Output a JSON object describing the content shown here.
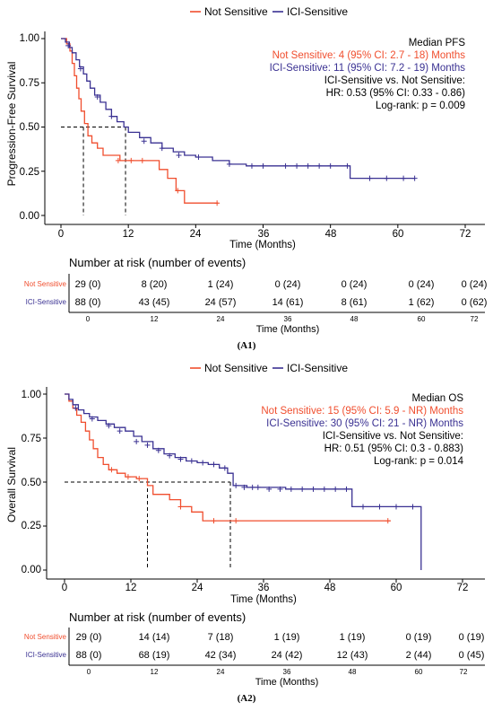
{
  "colors": {
    "not_sensitive": "#F04E2E",
    "ici_sensitive": "#3A3192",
    "axis": "#000000",
    "median_line": "#000000"
  },
  "chart_data": [
    {
      "type": "line",
      "panel_label": "(A1)",
      "legend": [
        "Not Sensitive",
        "ICI-Sensitive"
      ],
      "legend_position": "top",
      "xlabel": "Time (Months)",
      "ylabel": "Progression-Free Survival",
      "xlim": [
        0,
        72
      ],
      "ylim": [
        0,
        1
      ],
      "xticks": [
        "0",
        "12",
        "24",
        "36",
        "48",
        "60",
        "72"
      ],
      "yticks": [
        "0.00",
        "0.25",
        "0.50",
        "0.75",
        "1.00"
      ],
      "grid": false,
      "annotations": {
        "title": "Median PFS",
        "line_not_sensitive": "Not Sensitive: 4 (95% CI: 2.7 - 18) Months",
        "line_ici_sensitive": "ICI-Sensitive: 11 (95% CI: 7.2 - 19) Months",
        "comparison": "ICI-Sensitive vs. Not Sensitive:",
        "hr": "HR: 0.53 (95% CI: 0.33 - 0.86)",
        "logrank": "Log-rank: p = 0.009"
      },
      "medians": [
        4,
        11.5
      ],
      "series": [
        {
          "name": "Not Sensitive",
          "step_x": [
            0,
            1,
            1.6,
            2,
            2.4,
            2.8,
            3.2,
            3.6,
            4.2,
            4.8,
            5.5,
            6.5,
            7.5,
            10.5,
            17.5,
            19,
            20.5,
            22,
            28
          ],
          "step_y": [
            1,
            0.97,
            0.93,
            0.86,
            0.79,
            0.72,
            0.66,
            0.59,
            0.52,
            0.45,
            0.41,
            0.38,
            0.34,
            0.31,
            0.26,
            0.21,
            0.14,
            0.07,
            0.07
          ],
          "censor_x": [
            10.2,
            12.5,
            14.5,
            20.8,
            27.8
          ],
          "censor_y": [
            0.31,
            0.31,
            0.31,
            0.14,
            0.07
          ]
        },
        {
          "name": "ICI-Sensitive",
          "step_x": [
            0,
            0.8,
            1.5,
            2,
            2.7,
            3.3,
            4,
            4.6,
            5.2,
            6,
            7,
            8,
            9,
            10,
            11.2,
            12,
            14,
            16,
            18,
            20,
            22,
            24,
            27,
            30,
            33,
            37,
            42,
            48,
            51.5,
            52.5,
            63
          ],
          "step_y": [
            1,
            0.98,
            0.95,
            0.92,
            0.88,
            0.84,
            0.8,
            0.76,
            0.72,
            0.68,
            0.64,
            0.6,
            0.56,
            0.53,
            0.5,
            0.47,
            0.44,
            0.41,
            0.38,
            0.36,
            0.34,
            0.33,
            0.31,
            0.29,
            0.28,
            0.28,
            0.28,
            0.28,
            0.21,
            0.21,
            0.21
          ],
          "censor_x": [
            1.3,
            3.5,
            6.5,
            9,
            14.8,
            18,
            21,
            24.5,
            30,
            34,
            36,
            40,
            42,
            44,
            46,
            48,
            51,
            55,
            58,
            61,
            63
          ],
          "censor_y": [
            0.96,
            0.83,
            0.67,
            0.56,
            0.42,
            0.38,
            0.34,
            0.33,
            0.29,
            0.28,
            0.28,
            0.28,
            0.28,
            0.28,
            0.28,
            0.28,
            0.28,
            0.21,
            0.21,
            0.21,
            0.21
          ]
        }
      ],
      "risk_table": {
        "title": "Number at risk (number of events)",
        "xlabel": "Time (Months)",
        "times": [
          "0",
          "12",
          "24",
          "36",
          "48",
          "60",
          "72"
        ],
        "rows": [
          {
            "name": "Not Sensitive",
            "values": [
              "29 (0)",
              "8 (20)",
              "1 (24)",
              "0 (24)",
              "0 (24)",
              "0 (24)",
              "0 (24)"
            ]
          },
          {
            "name": "ICI-Sensitive",
            "values": [
              "88 (0)",
              "43 (45)",
              "24 (57)",
              "14 (61)",
              "8 (61)",
              "1 (62)",
              "0 (62)"
            ]
          }
        ]
      }
    },
    {
      "type": "line",
      "panel_label": "(A2)",
      "legend": [
        "Not Sensitive",
        "ICI-Sensitive"
      ],
      "legend_position": "top",
      "xlabel": "Time (Months)",
      "ylabel": "Overall Survival",
      "xlim": [
        0,
        72
      ],
      "ylim": [
        0,
        1
      ],
      "xticks": [
        "0",
        "12",
        "24",
        "36",
        "48",
        "60",
        "72"
      ],
      "yticks": [
        "0.00",
        "0.25",
        "0.50",
        "0.75",
        "1.00"
      ],
      "grid": false,
      "annotations": {
        "title": "Median OS",
        "line_not_sensitive": "Not Sensitive: 15 (95% CI: 5.9 - NR) Months",
        "line_ici_sensitive": "ICI-Sensitive: 30 (95% CI: 21 - NR) Months",
        "comparison": "ICI-Sensitive vs. Not Sensitive:",
        "hr": "HR: 0.51 (95% CI: 0.3 - 0.883)",
        "logrank": "Log-rank: p = 0.014"
      },
      "medians": [
        15,
        30
      ],
      "series": [
        {
          "name": "Not Sensitive",
          "step_x": [
            0,
            0.8,
            1.5,
            2.2,
            3,
            3.8,
            4.5,
            5.2,
            6,
            7,
            8,
            9.5,
            11,
            13,
            15,
            16,
            19,
            21,
            23,
            25,
            59
          ],
          "step_y": [
            1,
            0.96,
            0.92,
            0.88,
            0.84,
            0.79,
            0.74,
            0.69,
            0.64,
            0.6,
            0.57,
            0.55,
            0.53,
            0.52,
            0.48,
            0.43,
            0.4,
            0.36,
            0.33,
            0.28,
            0.28
          ],
          "censor_x": [
            8.5,
            11.5,
            13.5,
            21,
            27,
            31,
            58.5
          ],
          "censor_y": [
            0.57,
            0.53,
            0.52,
            0.36,
            0.28,
            0.28,
            0.28
          ]
        },
        {
          "name": "ICI-Sensitive",
          "step_x": [
            0,
            0.8,
            1.5,
            2.5,
            3.5,
            4.5,
            6,
            7.5,
            9,
            11,
            12.5,
            14,
            16,
            18,
            20,
            22,
            24,
            26,
            28,
            29.5,
            30.5,
            33,
            36,
            40,
            45,
            50,
            52,
            56,
            62,
            64.5
          ],
          "step_y": [
            1,
            0.97,
            0.94,
            0.91,
            0.89,
            0.87,
            0.85,
            0.83,
            0.81,
            0.79,
            0.76,
            0.73,
            0.69,
            0.66,
            0.64,
            0.62,
            0.61,
            0.6,
            0.58,
            0.55,
            0.48,
            0.47,
            0.47,
            0.46,
            0.46,
            0.46,
            0.36,
            0.36,
            0.36,
            0.0
          ],
          "censor_x": [
            2,
            5,
            8,
            10,
            13,
            15,
            17,
            19,
            21,
            23,
            25,
            27,
            29,
            31,
            32.5,
            34,
            35,
            37,
            39,
            41,
            43,
            45,
            47,
            49,
            51,
            54,
            57,
            60,
            63
          ],
          "censor_y": [
            0.92,
            0.86,
            0.82,
            0.79,
            0.73,
            0.71,
            0.68,
            0.65,
            0.63,
            0.62,
            0.61,
            0.6,
            0.58,
            0.48,
            0.47,
            0.47,
            0.47,
            0.46,
            0.46,
            0.46,
            0.46,
            0.46,
            0.46,
            0.46,
            0.46,
            0.36,
            0.36,
            0.36,
            0.36
          ]
        }
      ],
      "risk_table": {
        "title": "Number at risk (number of events)",
        "xlabel": "Time (Months)",
        "times": [
          "0",
          "12",
          "24",
          "36",
          "48",
          "60",
          "72"
        ],
        "rows": [
          {
            "name": "Not Sensitive",
            "values": [
              "29 (0)",
              "14 (14)",
              "7 (18)",
              "1 (19)",
              "1 (19)",
              "0 (19)",
              "0 (19)"
            ]
          },
          {
            "name": "ICI-Sensitive",
            "values": [
              "88 (0)",
              "68 (19)",
              "42 (34)",
              "24 (42)",
              "12 (43)",
              "2 (44)",
              "0 (45)"
            ]
          }
        ]
      }
    }
  ]
}
